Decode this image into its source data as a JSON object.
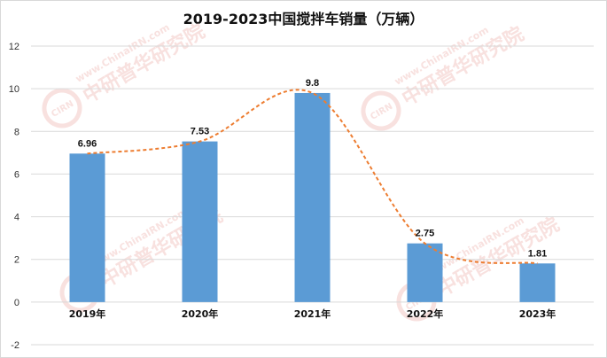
{
  "chart_data": {
    "type": "bar",
    "title": "2019-2023中国搅拌车销量（万辆）",
    "categories": [
      "2019年",
      "2020年",
      "2021年",
      "2022年",
      "2023年"
    ],
    "values": [
      6.96,
      7.53,
      9.8,
      2.75,
      1.81
    ],
    "value_labels": [
      "6.96",
      "7.53",
      "9.8",
      "2.75",
      "1.81"
    ],
    "ylim": [
      -2,
      12
    ],
    "yticks": [
      -2,
      0,
      2,
      4,
      6,
      8,
      10,
      12
    ],
    "grid": true,
    "legend": "none",
    "trendline": "smoothed dashed curve through the bar values",
    "colors": {
      "bar": "#5b9bd5",
      "trend": "#ed7d31",
      "grid": "#d9d9d9"
    }
  },
  "watermark": {
    "brand": "中研普华研究院",
    "site": "www.ChinaIRN.com",
    "badge": "CIRN",
    "color": "#f3c9c6"
  }
}
